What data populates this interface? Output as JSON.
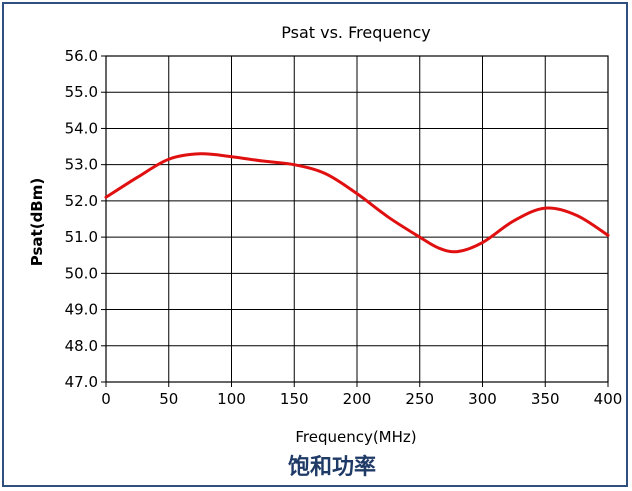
{
  "caption": "饱和功率",
  "colors": {
    "frame": "#2f4f7f",
    "caption": "#1f3a66",
    "series": "#e01010",
    "grid": "#000000"
  },
  "chart_data": {
    "type": "line",
    "title": "Psat vs. Frequency",
    "xlabel": "Frequency(MHz)",
    "ylabel": "Psat(dBm)",
    "xlim": [
      0,
      400
    ],
    "ylim": [
      47.0,
      56.0
    ],
    "xticks": [
      0,
      50,
      100,
      150,
      200,
      250,
      300,
      350,
      400
    ],
    "yticks": [
      47.0,
      48.0,
      49.0,
      50.0,
      51.0,
      52.0,
      53.0,
      54.0,
      55.0,
      56.0
    ],
    "ytick_labels": [
      "47.0",
      "48.0",
      "49.0",
      "50.0",
      "51.0",
      "52.0",
      "53.0",
      "54.0",
      "55.0",
      "56.0"
    ],
    "grid": true,
    "series": [
      {
        "x": [
          0,
          25,
          50,
          75,
          100,
          125,
          150,
          175,
          200,
          225,
          250,
          265,
          280,
          300,
          325,
          350,
          375,
          400
        ],
        "values": [
          52.1,
          52.65,
          53.15,
          53.3,
          53.22,
          53.1,
          53.0,
          52.75,
          52.2,
          51.55,
          51.0,
          50.7,
          50.6,
          50.85,
          51.45,
          51.8,
          51.6,
          51.05
        ]
      }
    ]
  }
}
